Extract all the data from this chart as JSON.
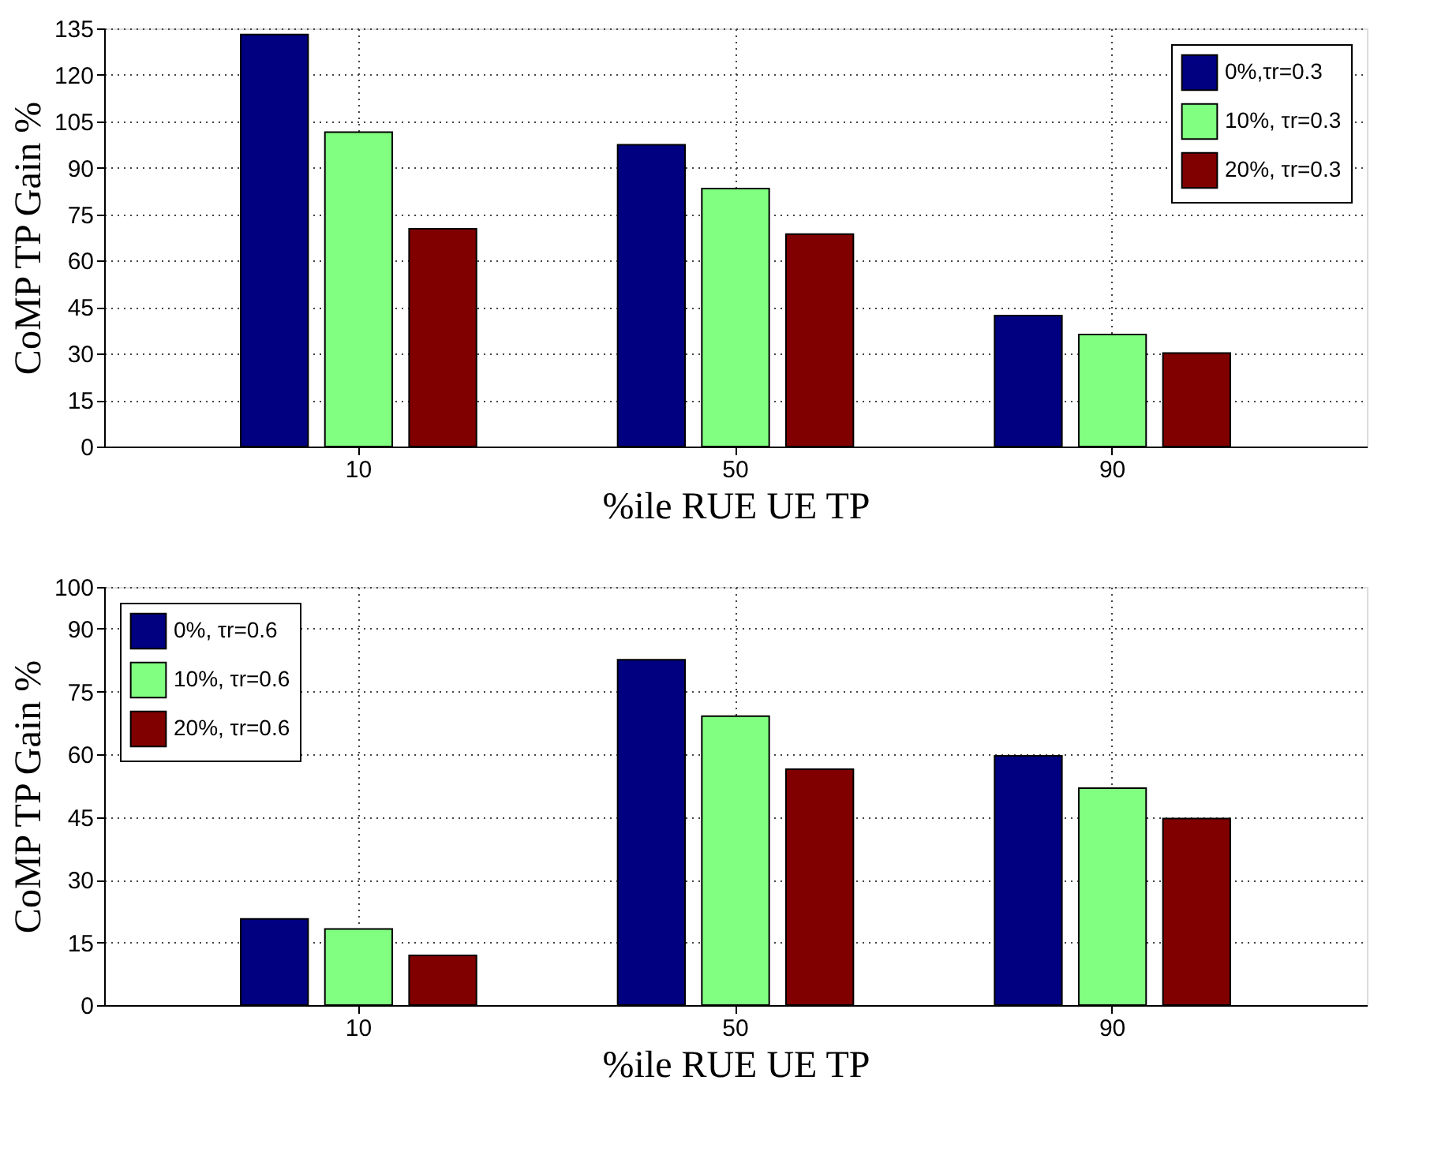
{
  "chart_data": [
    {
      "type": "bar",
      "xlabel": "%ile RUE UE TP",
      "ylabel": "CoMP TP Gain %",
      "categories": [
        "10",
        "50",
        "90"
      ],
      "series": [
        {
          "name": "0%,τr=0.3",
          "color": "#000080",
          "values": [
            133,
            97.4,
            42.3
          ]
        },
        {
          "name": "10%, τr=0.3",
          "color": "#80ff80",
          "values": [
            101.5,
            83.3,
            36.2
          ]
        },
        {
          "name": "20%, τr=0.3",
          "color": "#800000",
          "values": [
            70.3,
            68.6,
            30.2
          ]
        }
      ],
      "ylim": [
        0,
        135
      ],
      "yticks": [
        0,
        15,
        30,
        45,
        60,
        75,
        90,
        105,
        120,
        135
      ],
      "grid": true,
      "legend": "top right"
    },
    {
      "type": "bar",
      "xlabel": "%ile RUE UE TP",
      "ylabel": "CoMP TP Gain %",
      "categories": [
        "10",
        "50",
        "90"
      ],
      "series": [
        {
          "name": "0%, τr=0.6",
          "color": "#000080",
          "values": [
            20.6,
            82.6,
            59.6
          ]
        },
        {
          "name": "10%, τr=0.6",
          "color": "#80ff80",
          "values": [
            18.2,
            69.1,
            51.9
          ]
        },
        {
          "name": "20%, τr=0.6",
          "color": "#800000",
          "values": [
            11.9,
            56.4,
            44.6
          ]
        }
      ],
      "ylim": [
        0,
        100
      ],
      "yticks": [
        0,
        15,
        30,
        45,
        60,
        75,
        90,
        100
      ],
      "grid": true,
      "legend": "top left"
    }
  ]
}
